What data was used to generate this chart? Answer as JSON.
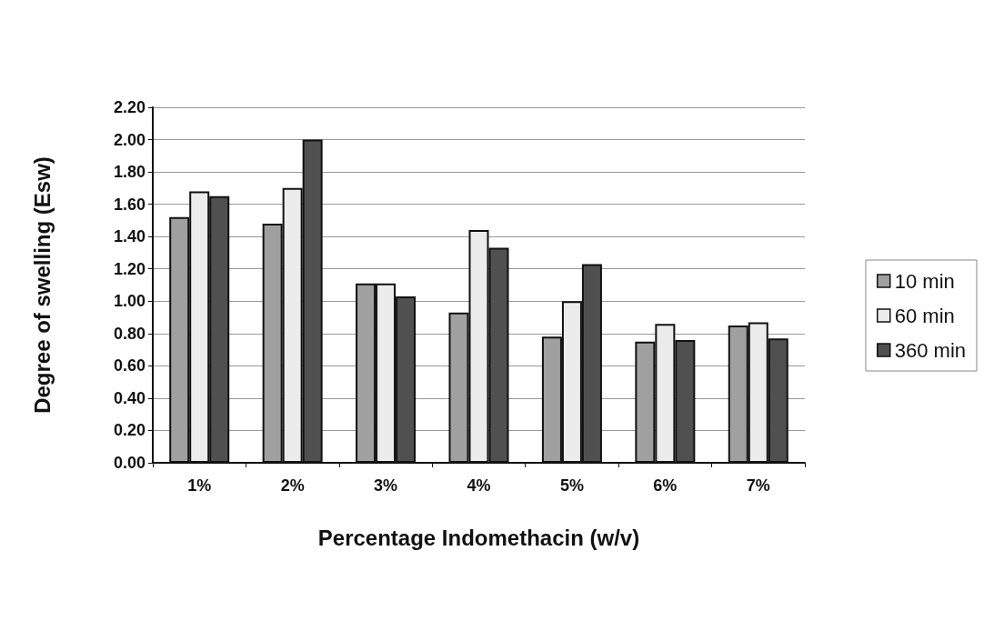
{
  "chart_data": {
    "type": "bar",
    "xlabel": "Percentage Indomethacin (w/v)",
    "ylabel": "Degree of swelling (Esw)",
    "categories": [
      "1%",
      "2%",
      "3%",
      "4%",
      "5%",
      "6%",
      "7%"
    ],
    "series": [
      {
        "name": "10 min",
        "color": "#a0a0a0",
        "values": [
          1.52,
          1.48,
          1.11,
          0.93,
          0.78,
          0.75,
          0.85
        ]
      },
      {
        "name": "60 min",
        "color": "#ececec",
        "values": [
          1.68,
          1.7,
          1.11,
          1.44,
          1.0,
          0.86,
          0.87
        ]
      },
      {
        "name": "360 min",
        "color": "#505050",
        "values": [
          1.65,
          2.0,
          1.03,
          1.33,
          1.23,
          0.76,
          0.77
        ]
      }
    ],
    "ylim": [
      0,
      2.2
    ],
    "yticks": [
      {
        "value": 0,
        "label": "0.00"
      },
      {
        "value": 0.2,
        "label": "0.20"
      },
      {
        "value": 0.4,
        "label": "0.40"
      },
      {
        "value": 0.6,
        "label": "0.60"
      },
      {
        "value": 0.8,
        "label": "0.80"
      },
      {
        "value": 1,
        "label": "1.00"
      },
      {
        "value": 1.2,
        "label": "1.20"
      },
      {
        "value": 1.4,
        "label": "1.40"
      },
      {
        "value": 1.6,
        "label": "1.60"
      },
      {
        "value": 1.8,
        "label": "1.80"
      },
      {
        "value": 2,
        "label": "2.00"
      },
      {
        "value": 2.2,
        "label": "2.20"
      }
    ],
    "grid": "y",
    "legend": "right"
  }
}
